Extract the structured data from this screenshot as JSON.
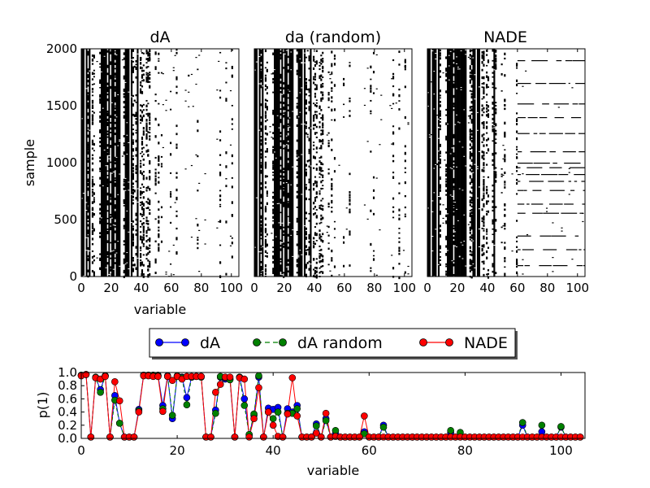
{
  "chart_data": [
    {
      "type": "heatmap",
      "title": "dA",
      "xlabel": "variable",
      "ylabel": "sample",
      "xlim": [
        0,
        105
      ],
      "ylim": [
        0,
        2000
      ],
      "xticks": [
        "0",
        "20",
        "40",
        "60",
        "80",
        "100"
      ],
      "yticks": [
        "0",
        "500",
        "1000",
        "1500",
        "2000"
      ],
      "colormap": {
        "0": "#ffffff",
        "1": "#000000"
      }
    },
    {
      "type": "heatmap",
      "title": "da (random)",
      "xlim": [
        0,
        105
      ],
      "ylim": [
        0,
        2000
      ],
      "xticks": [
        "0",
        "20",
        "40",
        "60",
        "80",
        "100"
      ],
      "colormap": {
        "0": "#ffffff",
        "1": "#000000"
      }
    },
    {
      "type": "heatmap",
      "title": "NADE",
      "xlim": [
        0,
        105
      ],
      "ylim": [
        0,
        2000
      ],
      "xticks": [
        "0",
        "20",
        "40",
        "60",
        "80",
        "100"
      ],
      "colormap": {
        "0": "#ffffff",
        "1": "#000000"
      }
    },
    {
      "type": "line",
      "xlabel": "variable",
      "ylabel": "p(1)",
      "xlim": [
        0,
        105
      ],
      "ylim": [
        0,
        1
      ],
      "xticks": [
        "0",
        "20",
        "40",
        "60",
        "80",
        "100"
      ],
      "yticks": [
        "0.0",
        "0.2",
        "0.4",
        "0.6",
        "0.8",
        "1.0"
      ],
      "legend": "top-center",
      "series": [
        {
          "name": "dA",
          "color": "#0000ff",
          "linestyle": "solid",
          "values": [
            0.96,
            0.97,
            0.02,
            0.92,
            0.74,
            0.95,
            0.02,
            0.65,
            0.23,
            0.02,
            0.02,
            0.02,
            0.44,
            0.96,
            0.96,
            0.96,
            0.96,
            0.5,
            0.95,
            0.3,
            0.94,
            0.93,
            0.62,
            0.93,
            0.94,
            0.94,
            0.02,
            0.02,
            0.43,
            0.93,
            0.9,
            0.9,
            0.02,
            0.93,
            0.6,
            0.05,
            0.35,
            0.93,
            0.02,
            0.46,
            0.44,
            0.47,
            0.02,
            0.45,
            0.4,
            0.5,
            0.02,
            0.02,
            0.02,
            0.22,
            0.02,
            0.3,
            0.02,
            0.07,
            0.02,
            0.02,
            0.02,
            0.02,
            0.02,
            0.1,
            0.02,
            0.02,
            0.02,
            0.2,
            0.02,
            0.02,
            0.02,
            0.02,
            0.02,
            0.02,
            0.02,
            0.02,
            0.02,
            0.02,
            0.02,
            0.02,
            0.02,
            0.09,
            0.02,
            0.02,
            0.02,
            0.02,
            0.02,
            0.02,
            0.02,
            0.02,
            0.02,
            0.02,
            0.02,
            0.02,
            0.02,
            0.02,
            0.2,
            0.02,
            0.02,
            0.02,
            0.1,
            0.02,
            0.02,
            0.02,
            0.17,
            0.02,
            0.02,
            0.02,
            0.02
          ]
        },
        {
          "name": "dA random",
          "color": "#008000",
          "linestyle": "dashed",
          "values": [
            0.96,
            0.97,
            0.02,
            0.93,
            0.7,
            0.95,
            0.02,
            0.58,
            0.23,
            0.02,
            0.02,
            0.02,
            0.42,
            0.96,
            0.96,
            0.96,
            0.95,
            0.45,
            0.94,
            0.35,
            0.95,
            0.92,
            0.51,
            0.93,
            0.94,
            0.93,
            0.02,
            0.02,
            0.38,
            0.94,
            0.92,
            0.89,
            0.02,
            0.93,
            0.5,
            0.06,
            0.37,
            0.95,
            0.02,
            0.4,
            0.3,
            0.4,
            0.02,
            0.38,
            0.38,
            0.45,
            0.02,
            0.02,
            0.02,
            0.19,
            0.02,
            0.27,
            0.02,
            0.12,
            0.02,
            0.02,
            0.02,
            0.02,
            0.02,
            0.07,
            0.02,
            0.02,
            0.02,
            0.17,
            0.02,
            0.02,
            0.02,
            0.02,
            0.02,
            0.02,
            0.02,
            0.02,
            0.02,
            0.02,
            0.02,
            0.02,
            0.02,
            0.12,
            0.02,
            0.09,
            0.02,
            0.02,
            0.02,
            0.02,
            0.02,
            0.02,
            0.02,
            0.02,
            0.02,
            0.02,
            0.02,
            0.02,
            0.24,
            0.02,
            0.02,
            0.02,
            0.2,
            0.02,
            0.02,
            0.02,
            0.18,
            0.02,
            0.02,
            0.02,
            0.02
          ]
        },
        {
          "name": "NADE",
          "color": "#ff0000",
          "linestyle": "solid",
          "values": [
            0.95,
            0.97,
            0.02,
            0.92,
            0.9,
            0.94,
            0.02,
            0.86,
            0.57,
            0.02,
            0.02,
            0.02,
            0.4,
            0.95,
            0.95,
            0.94,
            0.94,
            0.41,
            0.94,
            0.88,
            0.94,
            0.9,
            0.94,
            0.94,
            0.94,
            0.94,
            0.02,
            0.02,
            0.7,
            0.82,
            0.93,
            0.93,
            0.02,
            0.92,
            0.9,
            0.02,
            0.3,
            0.77,
            0.02,
            0.4,
            0.2,
            0.03,
            0.02,
            0.37,
            0.92,
            0.34,
            0.02,
            0.02,
            0.02,
            0.08,
            0.02,
            0.38,
            0.02,
            0.03,
            0.02,
            0.02,
            0.02,
            0.02,
            0.02,
            0.34,
            0.02,
            0.02,
            0.02,
            0.02,
            0.02,
            0.02,
            0.02,
            0.02,
            0.02,
            0.02,
            0.02,
            0.02,
            0.02,
            0.02,
            0.02,
            0.02,
            0.02,
            0.02,
            0.02,
            0.02,
            0.02,
            0.02,
            0.02,
            0.02,
            0.02,
            0.02,
            0.02,
            0.02,
            0.02,
            0.02,
            0.02,
            0.02,
            0.02,
            0.02,
            0.02,
            0.02,
            0.02,
            0.02,
            0.02,
            0.02,
            0.02,
            0.02,
            0.02,
            0.02,
            0.02
          ]
        }
      ]
    }
  ]
}
